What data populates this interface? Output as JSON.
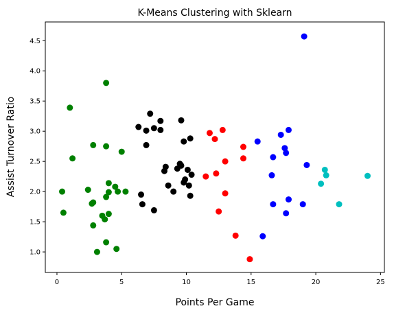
{
  "chart_data": {
    "type": "scatter",
    "title": "K-Means Clustering with Sklearn",
    "xlabel": "Points Per Game",
    "ylabel": "Assist Turnover Ratio",
    "xlim": [
      -0.9,
      25.3
    ],
    "ylim": [
      0.66,
      4.81
    ],
    "xticks": [
      "0",
      "5",
      "10",
      "15",
      "20",
      "25"
    ],
    "yticks": [
      "1.0",
      "1.5",
      "2.0",
      "2.5",
      "3.0",
      "3.5",
      "4.0",
      "4.5"
    ],
    "grid": false,
    "legend": "none",
    "series": [
      {
        "color": "#008000",
        "points": [
          [
            1.0,
            3.39
          ],
          [
            3.8,
            3.8
          ],
          [
            1.2,
            2.55
          ],
          [
            2.8,
            2.77
          ],
          [
            3.8,
            2.75
          ],
          [
            5.0,
            2.66
          ],
          [
            0.4,
            2.0
          ],
          [
            0.5,
            1.65
          ],
          [
            2.4,
            2.03
          ],
          [
            2.7,
            1.8
          ],
          [
            2.8,
            1.82
          ],
          [
            4.0,
            2.14
          ],
          [
            4.5,
            2.08
          ],
          [
            3.8,
            1.91
          ],
          [
            4.0,
            1.99
          ],
          [
            4.7,
            2.0
          ],
          [
            5.3,
            2.0
          ],
          [
            2.8,
            1.44
          ],
          [
            3.5,
            1.6
          ],
          [
            3.7,
            1.54
          ],
          [
            4.0,
            1.63
          ],
          [
            3.8,
            1.16
          ],
          [
            4.6,
            1.05
          ],
          [
            3.1,
            1.0
          ]
        ]
      },
      {
        "color": "#000000",
        "points": [
          [
            7.2,
            3.29
          ],
          [
            6.3,
            3.07
          ],
          [
            6.9,
            3.01
          ],
          [
            7.5,
            3.05
          ],
          [
            8.0,
            3.02
          ],
          [
            8.0,
            3.17
          ],
          [
            9.6,
            3.18
          ],
          [
            6.9,
            2.77
          ],
          [
            9.8,
            2.83
          ],
          [
            10.3,
            2.88
          ],
          [
            9.5,
            2.46
          ],
          [
            9.6,
            2.43
          ],
          [
            9.3,
            2.38
          ],
          [
            10.1,
            2.36
          ],
          [
            8.4,
            2.41
          ],
          [
            8.3,
            2.34
          ],
          [
            10.4,
            2.28
          ],
          [
            9.9,
            2.2
          ],
          [
            9.8,
            2.15
          ],
          [
            6.5,
            1.95
          ],
          [
            8.6,
            2.1
          ],
          [
            9.0,
            2.0
          ],
          [
            10.2,
            2.1
          ],
          [
            6.6,
            1.79
          ],
          [
            10.3,
            1.93
          ],
          [
            7.5,
            1.69
          ]
        ]
      },
      {
        "color": "#ff0000",
        "points": [
          [
            11.8,
            2.97
          ],
          [
            12.8,
            3.02
          ],
          [
            12.2,
            2.87
          ],
          [
            14.4,
            2.74
          ],
          [
            13.0,
            2.5
          ],
          [
            14.4,
            2.55
          ],
          [
            12.3,
            2.3
          ],
          [
            11.5,
            2.25
          ],
          [
            13.0,
            1.97
          ],
          [
            12.5,
            1.67
          ],
          [
            13.8,
            1.27
          ],
          [
            14.9,
            0.88
          ]
        ]
      },
      {
        "color": "#0000ff",
        "points": [
          [
            19.1,
            4.57
          ],
          [
            17.9,
            3.02
          ],
          [
            17.3,
            2.94
          ],
          [
            15.5,
            2.83
          ],
          [
            17.6,
            2.72
          ],
          [
            17.7,
            2.64
          ],
          [
            16.7,
            2.57
          ],
          [
            19.3,
            2.44
          ],
          [
            16.6,
            2.27
          ],
          [
            17.9,
            1.87
          ],
          [
            16.7,
            1.79
          ],
          [
            19.0,
            1.79
          ],
          [
            17.7,
            1.64
          ],
          [
            15.9,
            1.26
          ]
        ]
      },
      {
        "color": "#00bfbf",
        "points": [
          [
            20.7,
            2.36
          ],
          [
            20.8,
            2.27
          ],
          [
            20.4,
            2.13
          ],
          [
            21.8,
            1.79
          ],
          [
            24.0,
            2.26
          ]
        ]
      }
    ]
  }
}
